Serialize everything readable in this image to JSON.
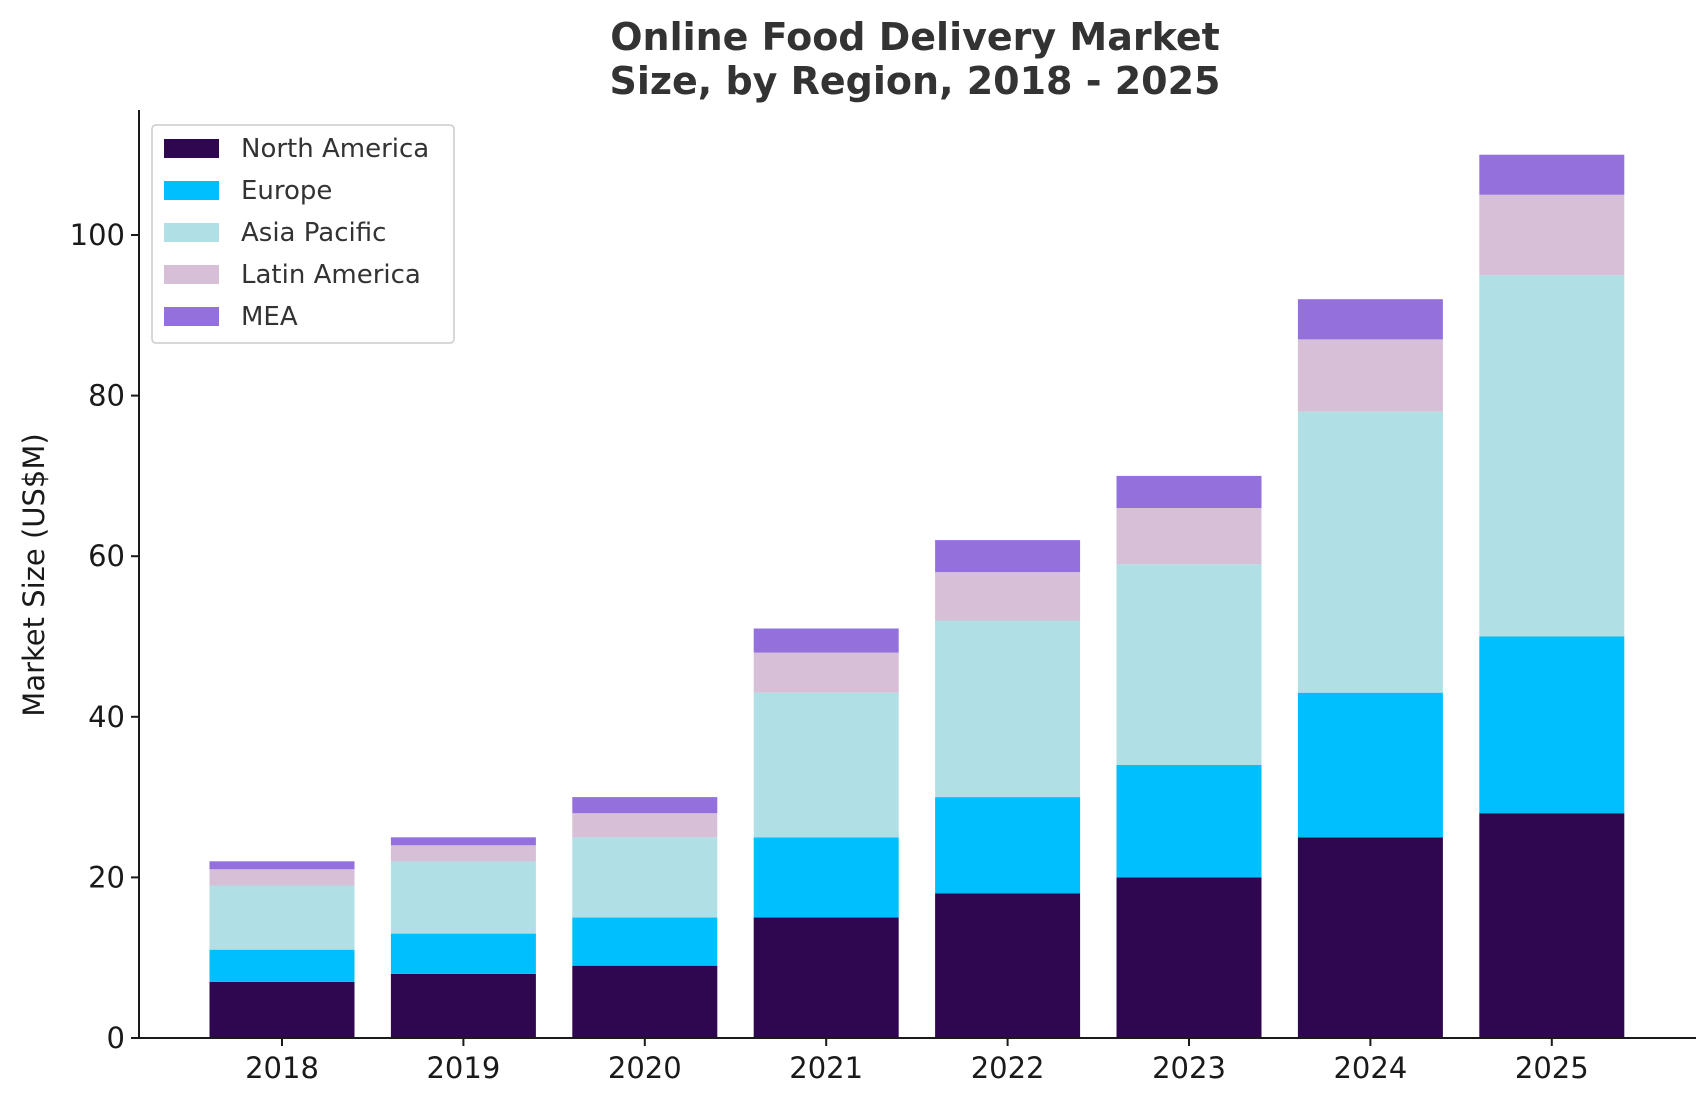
{
  "chart_data": {
    "type": "bar",
    "stacked": true,
    "title_lines": [
      "Online Food Delivery Market",
      "Size, by Region, 2018 - 2025"
    ],
    "xlabel": "",
    "ylabel": "Market Size (US$M)",
    "ylim": [
      0,
      115
    ],
    "yticks": [
      0,
      20,
      40,
      60,
      80,
      100
    ],
    "categories": [
      "2018",
      "2019",
      "2020",
      "2021",
      "2022",
      "2023",
      "2024",
      "2025"
    ],
    "series": [
      {
        "name": "North America",
        "color": "#2f0650",
        "values": [
          7,
          8,
          9,
          15,
          18,
          20,
          25,
          28
        ]
      },
      {
        "name": "Europe",
        "color": "#00bfff",
        "values": [
          4,
          5,
          6,
          10,
          12,
          14,
          18,
          22
        ]
      },
      {
        "name": "Asia Pacific",
        "color": "#b0dfe5",
        "values": [
          8,
          9,
          10,
          18,
          22,
          25,
          35,
          45
        ]
      },
      {
        "name": "Latin America",
        "color": "#d8bfd8",
        "values": [
          2,
          2,
          3,
          5,
          6,
          7,
          9,
          10
        ]
      },
      {
        "name": "MEA",
        "color": "#9370db",
        "values": [
          1,
          1,
          2,
          3,
          4,
          4,
          5,
          5
        ]
      }
    ],
    "grid": false,
    "legend_position": "top-left"
  }
}
